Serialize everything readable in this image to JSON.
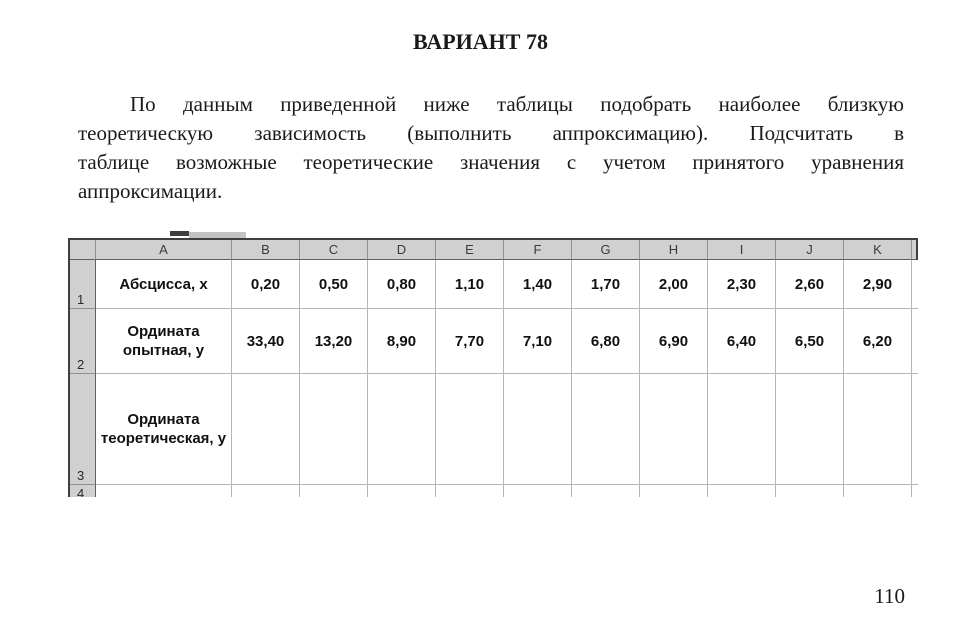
{
  "document": {
    "title": "ВАРИАНТ 78",
    "paragraph_lines": [
      "По данным приведенной ниже таблицы подобрать наиболее близкую",
      "теоретическую зависимость (выполнить аппроксимацию). Подсчитать в",
      "таблице возможные теоретические значения с учетом принятого уравнения",
      "аппроксимации."
    ],
    "page_number": "110"
  },
  "spreadsheet": {
    "column_headers": [
      "A",
      "B",
      "C",
      "D",
      "E",
      "F",
      "G",
      "H",
      "I",
      "J",
      "K"
    ],
    "data_rows": [
      {
        "row_number": "1",
        "label": "Абсцисса, x",
        "values": [
          "0,20",
          "0,50",
          "0,80",
          "1,10",
          "1,40",
          "1,70",
          "2,00",
          "2,30",
          "2,60",
          "2,90"
        ]
      },
      {
        "row_number": "2",
        "label": "Ордината опытная, y",
        "values": [
          "33,40",
          "13,20",
          "8,90",
          "7,70",
          "7,10",
          "6,80",
          "6,90",
          "6,40",
          "6,50",
          "6,20"
        ]
      },
      {
        "row_number": "3",
        "label": "Ордината теоретическая, y",
        "values": [
          "",
          "",
          "",
          "",
          "",
          "",
          "",
          "",
          "",
          ""
        ]
      },
      {
        "row_number": "4",
        "label": "",
        "values": [
          "",
          "",
          "",
          "",
          "",
          "",
          "",
          "",
          "",
          ""
        ]
      }
    ],
    "colors": {
      "header_bg": "#d0d0d0",
      "grid_line": "#b5b5b5",
      "outer_border": "#3f3f3f"
    }
  }
}
